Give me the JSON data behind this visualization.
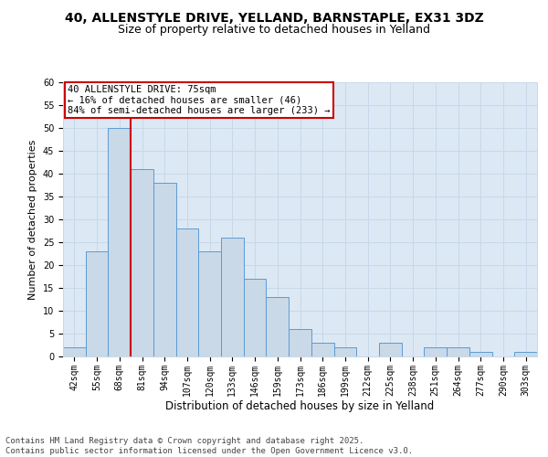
{
  "title1": "40, ALLENSTYLE DRIVE, YELLAND, BARNSTAPLE, EX31 3DZ",
  "title2": "Size of property relative to detached houses in Yelland",
  "xlabel": "Distribution of detached houses by size in Yelland",
  "ylabel": "Number of detached properties",
  "categories": [
    "42sqm",
    "55sqm",
    "68sqm",
    "81sqm",
    "94sqm",
    "107sqm",
    "120sqm",
    "133sqm",
    "146sqm",
    "159sqm",
    "173sqm",
    "186sqm",
    "199sqm",
    "212sqm",
    "225sqm",
    "238sqm",
    "251sqm",
    "264sqm",
    "277sqm",
    "290sqm",
    "303sqm"
  ],
  "values": [
    2,
    23,
    50,
    41,
    38,
    28,
    23,
    26,
    17,
    13,
    6,
    3,
    2,
    0,
    3,
    0,
    2,
    2,
    1,
    0,
    1
  ],
  "bar_color": "#c9d9e8",
  "bar_edge_color": "#5b9bd5",
  "vline_x_idx": 2,
  "vline_color": "#cc0000",
  "annotation_text": "40 ALLENSTYLE DRIVE: 75sqm\n← 16% of detached houses are smaller (46)\n84% of semi-detached houses are larger (233) →",
  "annotation_box_color": "#ffffff",
  "annotation_box_edge": "#cc0000",
  "grid_color": "#c8d8e8",
  "background_color": "#dce8f4",
  "ylim": [
    0,
    60
  ],
  "yticks": [
    0,
    5,
    10,
    15,
    20,
    25,
    30,
    35,
    40,
    45,
    50,
    55,
    60
  ],
  "footer": "Contains HM Land Registry data © Crown copyright and database right 2025.\nContains public sector information licensed under the Open Government Licence v3.0.",
  "title1_fontsize": 10,
  "title2_fontsize": 9,
  "xlabel_fontsize": 8.5,
  "ylabel_fontsize": 8,
  "tick_fontsize": 7,
  "annotation_fontsize": 7.5,
  "footer_fontsize": 6.5
}
